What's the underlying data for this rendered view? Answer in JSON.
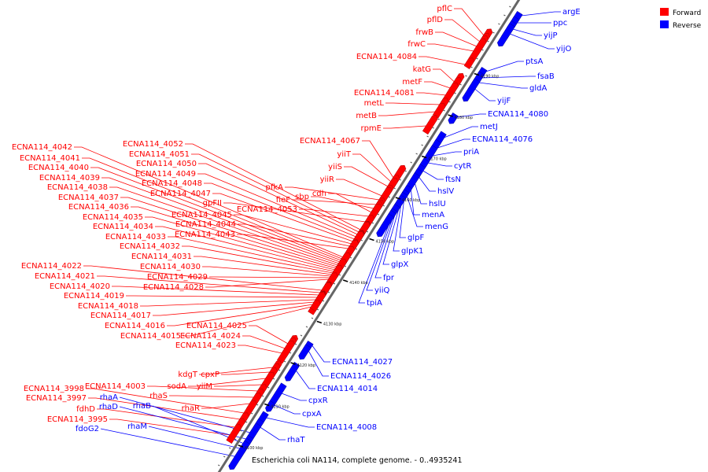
{
  "caption": "Escherichia coli NA114, complete genome. - 0..4935241",
  "legend": [
    {
      "label": "Forward",
      "color": "#ff0000"
    },
    {
      "label": "Reverse",
      "color": "#0000ff"
    }
  ],
  "colors": {
    "forward": "#ff0000",
    "reverse": "#0000ff",
    "axis": "#666666",
    "line_forward": "#ff0000",
    "line_reverse": "#0000ff"
  },
  "ticks": [
    {
      "label": "4100 kbp",
      "kbp": 4100
    },
    {
      "label": "4110 kbp",
      "kbp": 4110
    },
    {
      "label": "4120 kbp",
      "kbp": 4120
    },
    {
      "label": "4130 kbp",
      "kbp": 4130
    },
    {
      "label": "4140 kbp",
      "kbp": 4140
    },
    {
      "label": "4150 kbp",
      "kbp": 4150
    },
    {
      "label": "4160 kbp",
      "kbp": 4160
    },
    {
      "label": "4170 kbp",
      "kbp": 4170
    },
    {
      "label": "4180 kbp",
      "kbp": 4180
    },
    {
      "label": "4190 kbp",
      "kbp": 4190
    }
  ],
  "forward_labels": [
    "pflC",
    "pflD",
    "frwB",
    "frwC",
    "ECNA114_4084",
    "katG",
    "metF",
    "ECNA114_4081",
    "metL",
    "metB",
    "rpmE",
    "ECNA114_4067",
    "yiiT",
    "yiiS",
    "yiiR",
    "pfkA",
    "fieF",
    "sbp",
    "cdh",
    "ECNA114_4053",
    "gpFII",
    "ECNA114_4052",
    "ECNA114_4051",
    "ECNA114_4050",
    "ECNA114_4049",
    "ECNA114_4048",
    "ECNA114_4047",
    "ECNA114_4045",
    "ECNA114_4044",
    "ECNA114_4043",
    "ECNA114_4042",
    "ECNA114_4041",
    "ECNA114_4040",
    "ECNA114_4039",
    "ECNA114_4038",
    "ECNA114_4037",
    "ECNA114_4036",
    "ECNA114_4035",
    "ECNA114_4034",
    "ECNA114_4033",
    "ECNA114_4032",
    "ECNA114_4031",
    "ECNA114_4030",
    "ECNA114_4029",
    "ECNA114_4028",
    "ECNA114_4022",
    "ECNA114_4021",
    "ECNA114_4020",
    "ECNA114_4019",
    "ECNA114_4018",
    "ECNA114_4017",
    "ECNA114_4016",
    "ECNA114_4015",
    "ECNA114_4025",
    "ECNA114_4024",
    "ECNA114_4023",
    "kdgT",
    "cpxP",
    "sodA",
    "yiiM",
    "ECNA114_4003",
    "rhaS",
    "rhaR",
    "ECNA114_3998",
    "ECNA114_3997",
    "fdhD",
    "ECNA114_3995"
  ],
  "reverse_labels": [
    "argE",
    "ppc",
    "yijP",
    "yijO",
    "ptsA",
    "fsaB",
    "gldA",
    "yijF",
    "ECNA114_4080",
    "metJ",
    "ECNA114_4076",
    "priA",
    "cytR",
    "ftsN",
    "hslV",
    "hslU",
    "menA",
    "menG",
    "glpF",
    "glpK1",
    "glpX",
    "fpr",
    "yiiQ",
    "tpiA",
    "ECNA114_4027",
    "ECNA114_4026",
    "ECNA114_4014",
    "cpxR",
    "cpxA",
    "ECNA114_4008",
    "rhaT",
    "rhaA",
    "rhaD",
    "rhaB",
    "rhaM",
    "fdoG2"
  ]
}
